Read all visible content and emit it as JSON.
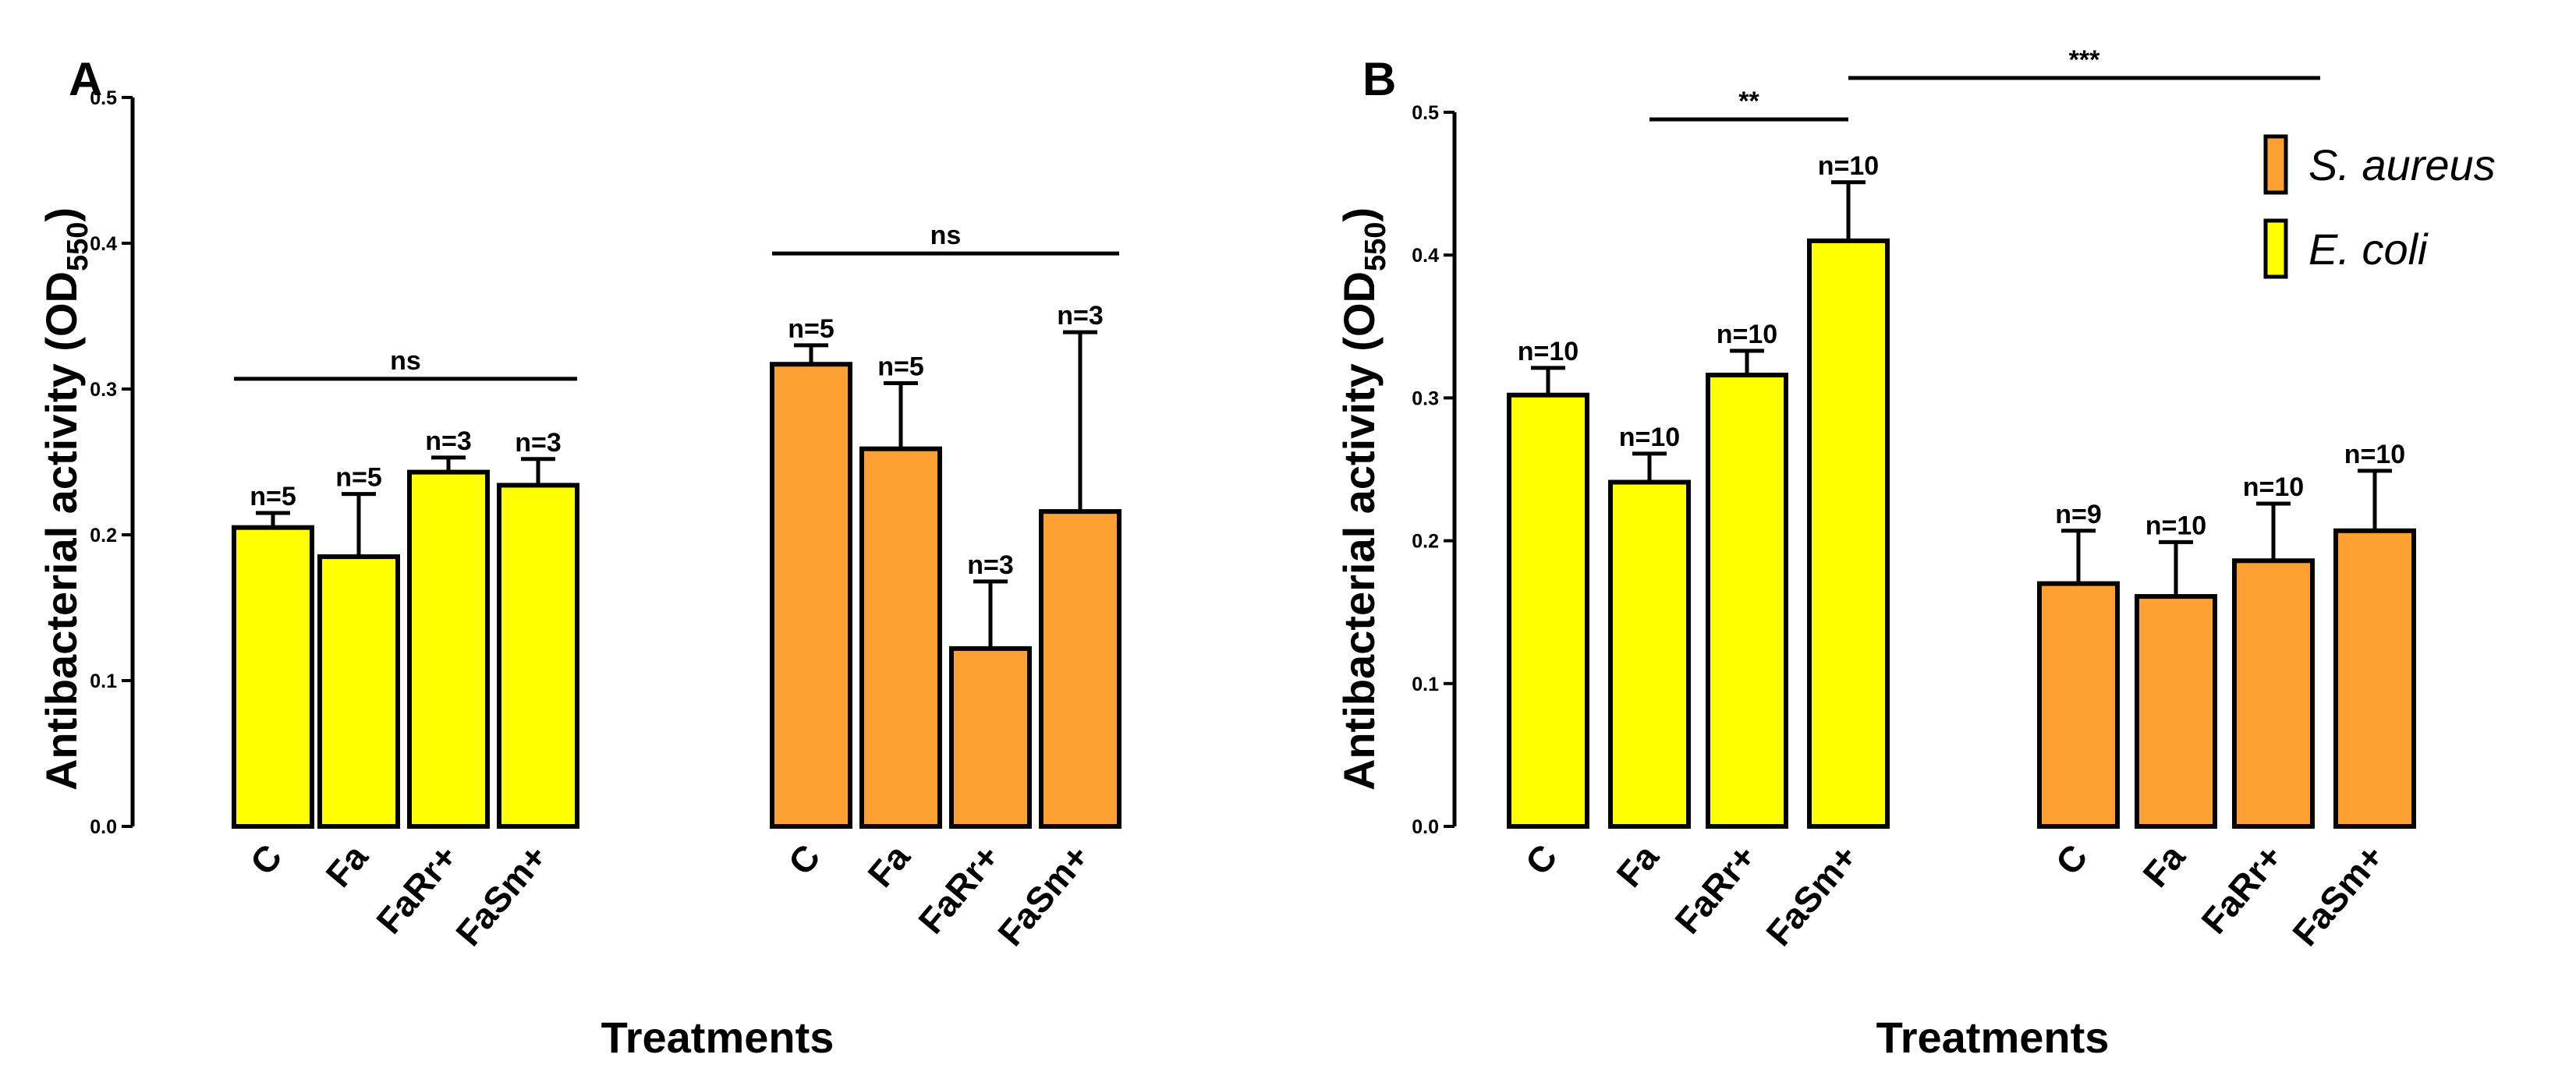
{
  "chart_data": [
    {
      "panel": "A",
      "type": "bar",
      "xlabel": "Treatments",
      "ylabel": "Antibacterial activity (OD",
      "ylabel_sub": "550",
      "ylabel_close": ")",
      "ylim": [
        0,
        0.5
      ],
      "yticks": [
        "0.0",
        "0.1",
        "0.2",
        "0.3",
        "0.4",
        "0.5"
      ],
      "series": [
        {
          "name": "E. coli",
          "color": "#ffff00",
          "categories": [
            "C",
            "Fa",
            "FaRr+",
            "FaSm+"
          ],
          "values": [
            0.205,
            0.185,
            0.243,
            0.234
          ],
          "errors": [
            0.01,
            0.043,
            0.01,
            0.018
          ],
          "n_labels": [
            "n=5",
            "n=5",
            "n=3",
            "n=3"
          ]
        },
        {
          "name": "S. aureus",
          "color": "#ffa033",
          "categories": [
            "C",
            "Fa",
            "FaRr+",
            "FaSm+"
          ],
          "values": [
            0.317,
            0.259,
            0.122,
            0.216
          ],
          "errors": [
            0.013,
            0.045,
            0.046,
            0.123
          ],
          "n_labels": [
            "n=5",
            "n=5",
            "n=3",
            "n=3"
          ]
        }
      ],
      "significance": [
        {
          "series": 0,
          "from": 0,
          "to": 3,
          "y": 0.307,
          "label": "ns"
        },
        {
          "series": 1,
          "from": 0,
          "to": 3,
          "y": 0.393,
          "label": "ns"
        }
      ]
    },
    {
      "panel": "B",
      "type": "bar",
      "xlabel": "Treatments",
      "ylabel": "Antibacterial activity (OD",
      "ylabel_sub": "550",
      "ylabel_close": ")",
      "ylim": [
        0,
        0.5
      ],
      "yticks": [
        "0.0",
        "0.1",
        "0.2",
        "0.3",
        "0.4",
        "0.5"
      ],
      "series": [
        {
          "name": "E. coli",
          "color": "#ffff00",
          "categories": [
            "C",
            "Fa",
            "FaRr+",
            "FaSm+"
          ],
          "values": [
            0.302,
            0.241,
            0.316,
            0.41
          ],
          "errors": [
            0.019,
            0.02,
            0.017,
            0.041
          ],
          "n_labels": [
            "n=10",
            "n=10",
            "n=10",
            "n=10"
          ]
        },
        {
          "name": "S. aureus",
          "color": "#ffa033",
          "categories": [
            "C",
            "Fa",
            "FaRr+",
            "FaSm+"
          ],
          "values": [
            0.17,
            0.161,
            0.186,
            0.207
          ],
          "errors": [
            0.037,
            0.038,
            0.04,
            0.042
          ],
          "n_labels": [
            "n=9",
            "n=10",
            "n=10",
            "n=10"
          ]
        }
      ],
      "significance": [
        {
          "series": 0,
          "from": 1,
          "to": 3,
          "y": 0.495,
          "label": "**",
          "endGroup": false
        },
        {
          "series": 0,
          "from": 3,
          "to": 3,
          "y": 0.524,
          "label": "***",
          "endGroup": true
        }
      ],
      "legend": {
        "position": "top-right",
        "entries": [
          {
            "label": "S. aureus",
            "color": "#ffa033"
          },
          {
            "label": "E. coli",
            "color": "#ffff00"
          }
        ]
      }
    }
  ]
}
